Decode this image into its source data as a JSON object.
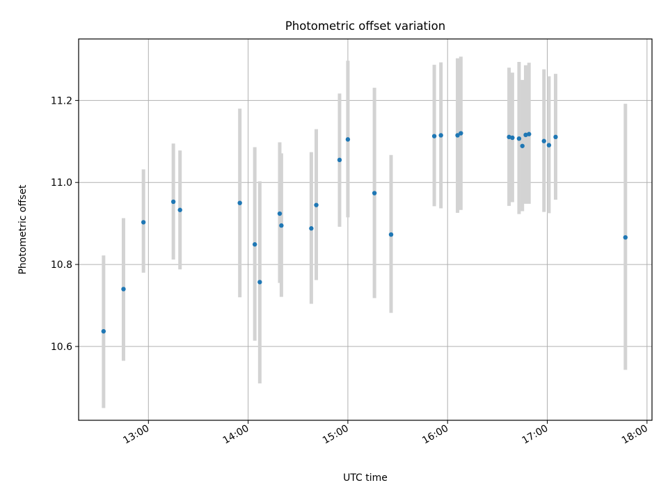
{
  "chart_data": {
    "type": "scatter",
    "title": "Photometric offset variation",
    "xlabel": "UTC time",
    "ylabel": "Photometric offset",
    "xlim": [
      "12:18",
      "18:03"
    ],
    "ylim": [
      10.42,
      11.35
    ],
    "x_ticks": [
      "13:00",
      "14:00",
      "15:00",
      "16:00",
      "17:00",
      "18:00"
    ],
    "y_ticks": [
      "10.6",
      "10.8",
      "11.0",
      "11.2"
    ],
    "y_tick_values": [
      10.6,
      10.8,
      11.0,
      11.2
    ],
    "grid": true,
    "point_color": "#1f77b4",
    "errorbar_color": "#d3d3d3",
    "points": [
      {
        "x": "12:33",
        "y": 10.637,
        "ylow": 10.45,
        "yhigh": 10.822
      },
      {
        "x": "12:45",
        "y": 10.74,
        "ylow": 10.565,
        "yhigh": 10.913
      },
      {
        "x": "12:57",
        "y": 10.903,
        "ylow": 10.78,
        "yhigh": 11.032
      },
      {
        "x": "13:15",
        "y": 10.953,
        "ylow": 10.812,
        "yhigh": 11.095
      },
      {
        "x": "13:19",
        "y": 10.933,
        "ylow": 10.788,
        "yhigh": 11.078
      },
      {
        "x": "13:55",
        "y": 10.95,
        "ylow": 10.72,
        "yhigh": 11.18
      },
      {
        "x": "14:04",
        "y": 10.849,
        "ylow": 10.614,
        "yhigh": 11.086
      },
      {
        "x": "14:07",
        "y": 10.757,
        "ylow": 10.51,
        "yhigh": 11.003
      },
      {
        "x": "14:19",
        "y": 10.924,
        "ylow": 10.755,
        "yhigh": 11.098
      },
      {
        "x": "14:20",
        "y": 10.895,
        "ylow": 10.721,
        "yhigh": 11.071
      },
      {
        "x": "14:38",
        "y": 10.888,
        "ylow": 10.704,
        "yhigh": 11.074
      },
      {
        "x": "14:41",
        "y": 10.945,
        "ylow": 10.762,
        "yhigh": 11.13
      },
      {
        "x": "14:55",
        "y": 11.055,
        "ylow": 10.892,
        "yhigh": 11.217
      },
      {
        "x": "15:00",
        "y": 11.105,
        "ylow": 10.915,
        "yhigh": 11.297
      },
      {
        "x": "15:16",
        "y": 10.974,
        "ylow": 10.718,
        "yhigh": 11.231
      },
      {
        "x": "15:26",
        "y": 10.873,
        "ylow": 10.682,
        "yhigh": 11.067
      },
      {
        "x": "15:52",
        "y": 11.113,
        "ylow": 10.942,
        "yhigh": 11.287
      },
      {
        "x": "15:56",
        "y": 11.115,
        "ylow": 10.937,
        "yhigh": 11.293
      },
      {
        "x": "16:06",
        "y": 11.115,
        "ylow": 10.926,
        "yhigh": 11.303
      },
      {
        "x": "16:08",
        "y": 11.12,
        "ylow": 10.933,
        "yhigh": 11.307
      },
      {
        "x": "16:37",
        "y": 11.111,
        "ylow": 10.943,
        "yhigh": 11.28
      },
      {
        "x": "16:39",
        "y": 11.109,
        "ylow": 10.952,
        "yhigh": 11.268
      },
      {
        "x": "16:43",
        "y": 11.107,
        "ylow": 10.923,
        "yhigh": 11.294
      },
      {
        "x": "16:45",
        "y": 11.089,
        "ylow": 10.93,
        "yhigh": 11.25
      },
      {
        "x": "16:47",
        "y": 11.116,
        "ylow": 10.948,
        "yhigh": 11.286
      },
      {
        "x": "16:49",
        "y": 11.118,
        "ylow": 10.948,
        "yhigh": 11.292
      },
      {
        "x": "16:58",
        "y": 11.101,
        "ylow": 10.928,
        "yhigh": 11.276
      },
      {
        "x": "17:01",
        "y": 11.091,
        "ylow": 10.925,
        "yhigh": 11.259
      },
      {
        "x": "17:05",
        "y": 11.111,
        "ylow": 10.958,
        "yhigh": 11.265
      },
      {
        "x": "17:47",
        "y": 10.866,
        "ylow": 10.543,
        "yhigh": 11.192
      }
    ]
  }
}
